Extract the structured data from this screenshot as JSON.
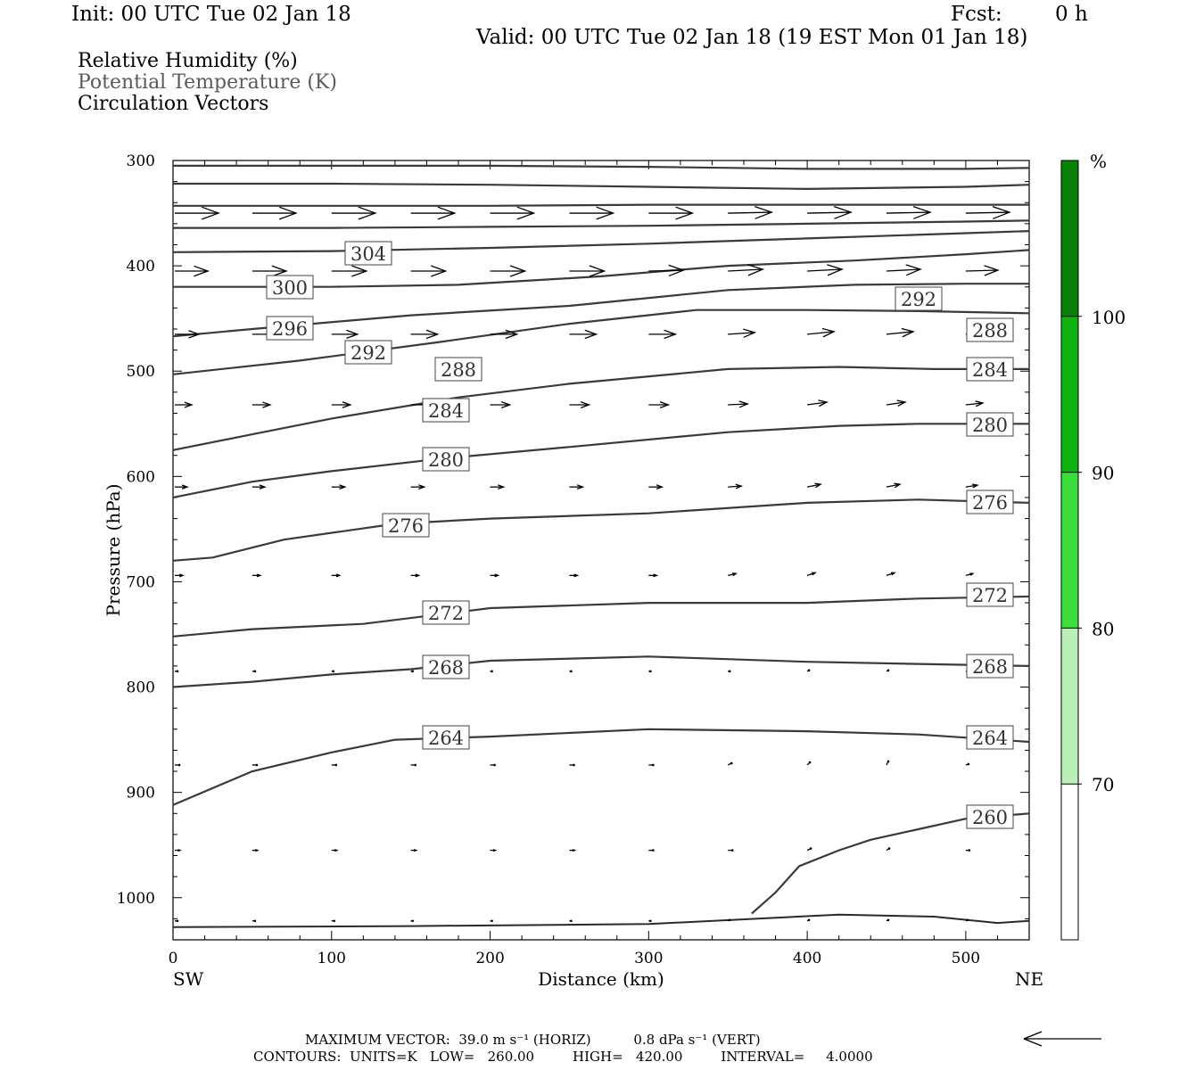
{
  "header": {
    "init": "Init: 00 UTC Tue 02 Jan 18",
    "fcst_label": "Fcst:",
    "fcst_value": "0 h",
    "valid": "Valid: 00 UTC Tue 02 Jan 18 (19 EST Mon 01 Jan 18)"
  },
  "legend": {
    "line1": "Relative Humidity (%)",
    "line2": "Potential Temperature (K)",
    "line3": "Circulation Vectors"
  },
  "colorbar": {
    "unit": "%",
    "levels": [
      "70",
      "80",
      "90",
      "100"
    ],
    "colors": [
      "#ffffff",
      "#b8f0b8",
      "#3cdc3c",
      "#10b410",
      "#0a820a"
    ]
  },
  "footer": {
    "line1": "MAXIMUM VECTOR:  39.0 m s⁻¹ (HORIZ)          0.8 dPa s⁻¹ (VERT)",
    "line2": "CONTOURS:  UNITS=K   LOW=   260.00         HIGH=   420.00         INTERVAL=     4.0000"
  },
  "chart_data": {
    "type": "line",
    "title": "",
    "xlabel": "Distance (km)",
    "ylabel": "Pressure (hPa)",
    "xlim": [
      0,
      540
    ],
    "ylim": [
      300,
      1040
    ],
    "y_reversed": true,
    "x_ticks": [
      "0",
      "100",
      "200",
      "300",
      "400",
      "500"
    ],
    "y_ticks": [
      "300",
      "400",
      "500",
      "600",
      "700",
      "800",
      "900",
      "1000"
    ],
    "x_endpoints": {
      "left": "SW",
      "right": "NE"
    },
    "contour_labels": [
      "304",
      "300",
      "296",
      "292",
      "292",
      "288",
      "288",
      "284",
      "284",
      "280",
      "280",
      "276",
      "276",
      "272",
      "272",
      "268",
      "268",
      "264",
      "264",
      "260"
    ],
    "series": [
      {
        "theta": 260,
        "x": [
          365,
          380,
          395,
          420,
          440,
          470,
          500,
          540
        ],
        "y": [
          1015,
          995,
          970,
          955,
          945,
          935,
          925,
          920
        ]
      },
      {
        "theta": 264,
        "x": [
          0,
          50,
          100,
          140,
          200,
          300,
          400,
          470,
          540
        ],
        "y": [
          912,
          880,
          862,
          850,
          847,
          840,
          842,
          845,
          852
        ]
      },
      {
        "theta": 268,
        "x": [
          0,
          50,
          100,
          150,
          200,
          300,
          400,
          470,
          540
        ],
        "y": [
          800,
          795,
          788,
          783,
          775,
          771,
          776,
          778,
          780
        ]
      },
      {
        "theta": 272,
        "x": [
          0,
          50,
          120,
          200,
          300,
          400,
          470,
          540
        ],
        "y": [
          752,
          745,
          740,
          725,
          720,
          720,
          716,
          714
        ]
      },
      {
        "theta": 276,
        "x": [
          0,
          25,
          70,
          140,
          200,
          300,
          400,
          470,
          540
        ],
        "y": [
          680,
          677,
          660,
          645,
          640,
          635,
          625,
          622,
          625
        ]
      },
      {
        "theta": 280,
        "x": [
          0,
          50,
          100,
          170,
          250,
          350,
          420,
          470,
          540
        ],
        "y": [
          620,
          605,
          595,
          583,
          572,
          558,
          552,
          550,
          550
        ]
      },
      {
        "theta": 284,
        "x": [
          0,
          50,
          100,
          180,
          250,
          350,
          420,
          480,
          540
        ],
        "y": [
          575,
          560,
          545,
          525,
          512,
          498,
          496,
          498,
          498
        ]
      },
      {
        "theta": 288,
        "x": [
          0,
          80,
          170,
          250,
          330,
          400,
          470,
          540
        ],
        "y": [
          503,
          490,
          472,
          455,
          442,
          442,
          443,
          445
        ]
      },
      {
        "theta": 292,
        "x": [
          0,
          50,
          150,
          250,
          350,
          430,
          500,
          540
        ],
        "y": [
          467,
          460,
          447,
          438,
          423,
          418,
          417,
          417
        ]
      },
      {
        "theta": 296,
        "x": [
          0,
          100,
          180,
          270,
          350,
          430,
          500,
          540
        ],
        "y": [
          420,
          420,
          418,
          410,
          400,
          395,
          389,
          385
        ]
      },
      {
        "theta": 300,
        "x": [
          0,
          100,
          200,
          300,
          400,
          500,
          540
        ],
        "y": [
          387,
          386,
          383,
          379,
          374,
          369,
          367
        ]
      },
      {
        "theta": 304,
        "x": [
          0,
          100,
          200,
          300,
          400,
          500,
          540
        ],
        "y": [
          364,
          364,
          363,
          362,
          360,
          358,
          357
        ]
      },
      {
        "theta": 308,
        "x": [
          0,
          100,
          200,
          300,
          400,
          500,
          540
        ],
        "y": [
          343,
          343,
          343,
          342,
          342,
          342,
          342
        ]
      },
      {
        "theta": 312,
        "x": [
          0,
          100,
          200,
          300,
          400,
          500,
          540
        ],
        "y": [
          322,
          322,
          323,
          325,
          327,
          325,
          323
        ]
      },
      {
        "theta": 316,
        "x": [
          0,
          100,
          200,
          300,
          400,
          500,
          540
        ],
        "y": [
          305,
          305,
          305,
          306,
          308,
          308,
          307
        ]
      }
    ],
    "vectors": [
      {
        "p": 350,
        "len": [
          49,
          49,
          49,
          49,
          49,
          49,
          49,
          49,
          49,
          49,
          49
        ],
        "dy": [
          0,
          0,
          0,
          0,
          0,
          0,
          0,
          -1,
          -1,
          -1,
          -1
        ]
      },
      {
        "p": 405,
        "len": [
          37,
          38,
          39,
          39,
          39,
          39,
          39,
          39,
          39,
          38,
          36
        ],
        "dy": [
          0,
          0,
          0,
          0,
          0,
          0,
          -1,
          -2,
          -2,
          -2,
          -1
        ]
      },
      {
        "p": 465,
        "len": [
          27,
          28,
          29,
          30,
          30,
          30,
          30,
          30,
          30,
          30,
          28
        ],
        "dy": [
          0,
          0,
          0,
          0,
          0,
          0,
          0,
          -2,
          -3,
          -3,
          -2
        ]
      },
      {
        "p": 532,
        "len": [
          19,
          20,
          21,
          22,
          22,
          22,
          22,
          22,
          22,
          21,
          19
        ],
        "dy": [
          0,
          0,
          0,
          0,
          0,
          0,
          0,
          -1,
          -3,
          -3,
          -2
        ]
      },
      {
        "p": 610,
        "len": [
          14,
          14,
          15,
          15,
          15,
          15,
          15,
          15,
          15,
          15,
          13
        ],
        "dy": [
          0,
          0,
          0,
          0,
          0,
          0,
          0,
          -1,
          -3,
          -3,
          -2
        ]
      },
      {
        "p": 694,
        "len": [
          9,
          9,
          9,
          9,
          9,
          9,
          9,
          9,
          9,
          9,
          8
        ],
        "dy": [
          0,
          0,
          0,
          0,
          0,
          0,
          0,
          -2,
          -3,
          -3,
          -2
        ]
      },
      {
        "p": 785,
        "len": [
          3,
          3,
          2,
          2,
          2,
          2,
          2,
          2,
          2,
          2,
          2
        ],
        "dy": [
          0,
          0,
          0,
          0,
          0,
          0,
          0,
          0,
          -1,
          -1,
          0
        ]
      },
      {
        "p": 874,
        "len": [
          5,
          5,
          5,
          5,
          5,
          5,
          5,
          4,
          3,
          2,
          3
        ],
        "dy": [
          0,
          0,
          0,
          0,
          0,
          0,
          0,
          -2,
          -3,
          -4,
          -1
        ]
      },
      {
        "p": 955,
        "len": [
          6,
          6,
          6,
          6,
          6,
          6,
          5,
          5,
          4,
          3,
          4
        ],
        "dy": [
          0,
          0,
          0,
          0,
          0,
          0,
          0,
          0,
          -2,
          -2,
          0
        ]
      },
      {
        "p": 1022,
        "len": [
          3,
          3,
          3,
          2,
          2,
          2,
          2,
          2,
          2,
          2,
          2
        ],
        "dy": [
          0,
          0,
          0,
          0,
          0,
          0,
          0,
          -1,
          -1,
          -1,
          -1
        ]
      }
    ],
    "max_vector_horiz": "39.0 m s⁻¹",
    "max_vector_vert": "0.8 dPa s⁻¹"
  }
}
